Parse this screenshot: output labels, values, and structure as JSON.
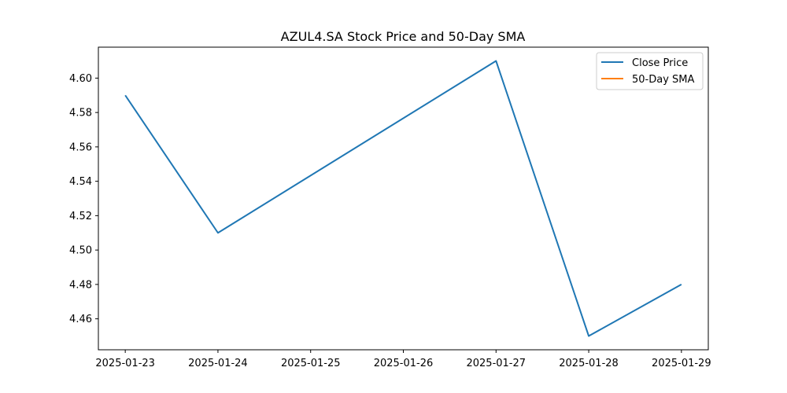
{
  "chart_data": {
    "type": "line",
    "title": "AZUL4.SA Stock Price and 50-Day SMA",
    "xlabel": "",
    "ylabel": "",
    "x": [
      "2025-01-23",
      "2025-01-24",
      "2025-01-25",
      "2025-01-26",
      "2025-01-27",
      "2025-01-28",
      "2025-01-29"
    ],
    "x_tick_labels": [
      "2025-01-23",
      "2025-01-24",
      "2025-01-25",
      "2025-01-26",
      "2025-01-27",
      "2025-01-28",
      "2025-01-29"
    ],
    "y_tick_labels": [
      "4.46",
      "4.48",
      "4.50",
      "4.52",
      "4.54",
      "4.56",
      "4.58",
      "4.60"
    ],
    "y_ticks": [
      4.46,
      4.48,
      4.5,
      4.52,
      4.54,
      4.56,
      4.58,
      4.6
    ],
    "ylim": [
      4.442,
      4.618
    ],
    "xlim": [
      "2025-01-22",
      "2025-01-29"
    ],
    "grid": false,
    "legend_position": "top-right",
    "series": [
      {
        "name": "Close Price",
        "color": "#1f77b4",
        "points": [
          {
            "x": "2025-01-23",
            "y": 4.59
          },
          {
            "x": "2025-01-24",
            "y": 4.51
          },
          {
            "x": "2025-01-27",
            "y": 4.61
          },
          {
            "x": "2025-01-28",
            "y": 4.45
          },
          {
            "x": "2025-01-29",
            "y": 4.48
          }
        ]
      },
      {
        "name": "50-Day SMA",
        "color": "#ff7f0e",
        "points": []
      }
    ]
  }
}
